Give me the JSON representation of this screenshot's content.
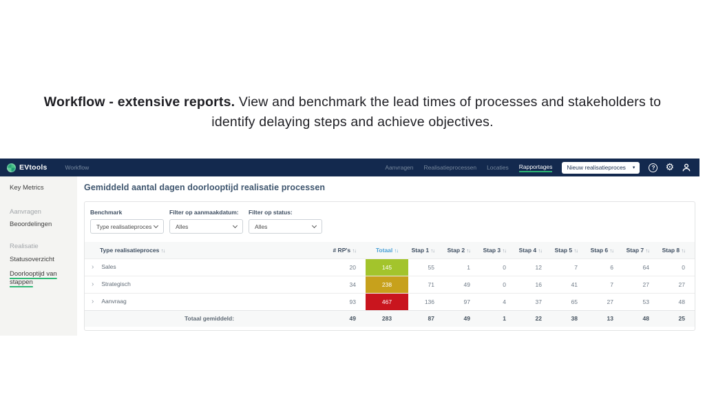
{
  "hero": {
    "title_bold": "Workflow - extensive reports.",
    "title_rest": " View and benchmark the lead times of processes and stakeholders to identify delaying steps and achieve objectives."
  },
  "navbar": {
    "brand": "EVtools",
    "app": "Workflow",
    "links": [
      {
        "label": "Aanvragen"
      },
      {
        "label": "Realisatieprocessen"
      },
      {
        "label": "Locaties"
      },
      {
        "label": "Rapportages"
      }
    ],
    "new_button": "Nieuw realisatieproces",
    "new_button_caret": "▾",
    "help_glyph": "?",
    "gear_glyph": "⚙",
    "accent_green": "#2eb875",
    "navbar_bg": "#13294e"
  },
  "sidebar": {
    "key_metrics": "Key Metrics",
    "group1_heading": "Aanvragen",
    "group1_item": "Beoordelingen",
    "group2_heading": "Realisatie",
    "group2_item1": "Statusoverzicht",
    "group2_item2": "Doorlooptijd van stappen"
  },
  "main": {
    "title": "Gemiddeld aantal dagen doorlooptijd realisatie processen",
    "filters": [
      {
        "label": "Benchmark",
        "value": "Type realisatieproces"
      },
      {
        "label": "Filter op aanmaakdatum:",
        "value": "Alles"
      },
      {
        "label": "Filter op status:",
        "value": "Alles"
      }
    ],
    "table": {
      "sort_glyph": "↑↓",
      "row_expand_glyph": "›",
      "columns": [
        "Type realisatieproces",
        "# RP's",
        "Totaal",
        "Stap 1",
        "Stap 2",
        "Stap 3",
        "Stap 4",
        "Stap 5",
        "Stap 6",
        "Stap 7",
        "Stap 8"
      ],
      "rows": [
        {
          "type": "Sales",
          "rps": 20,
          "totaal": 145,
          "totaal_color": "#a3c42c",
          "steps": [
            55,
            1,
            0,
            12,
            7,
            6,
            64,
            0
          ]
        },
        {
          "type": "Strategisch",
          "rps": 34,
          "totaal": 238,
          "totaal_color": "#c7a11c",
          "steps": [
            71,
            49,
            0,
            16,
            41,
            7,
            27,
            27
          ]
        },
        {
          "type": "Aanvraag",
          "rps": 93,
          "totaal": 467,
          "totaal_color": "#c9151e",
          "steps": [
            136,
            97,
            4,
            37,
            65,
            27,
            53,
            48
          ]
        }
      ],
      "footer": {
        "label": "Totaal gemiddeld:",
        "rps": 49,
        "totaal": 283,
        "steps": [
          87,
          49,
          1,
          22,
          38,
          13,
          48,
          25
        ]
      }
    }
  }
}
